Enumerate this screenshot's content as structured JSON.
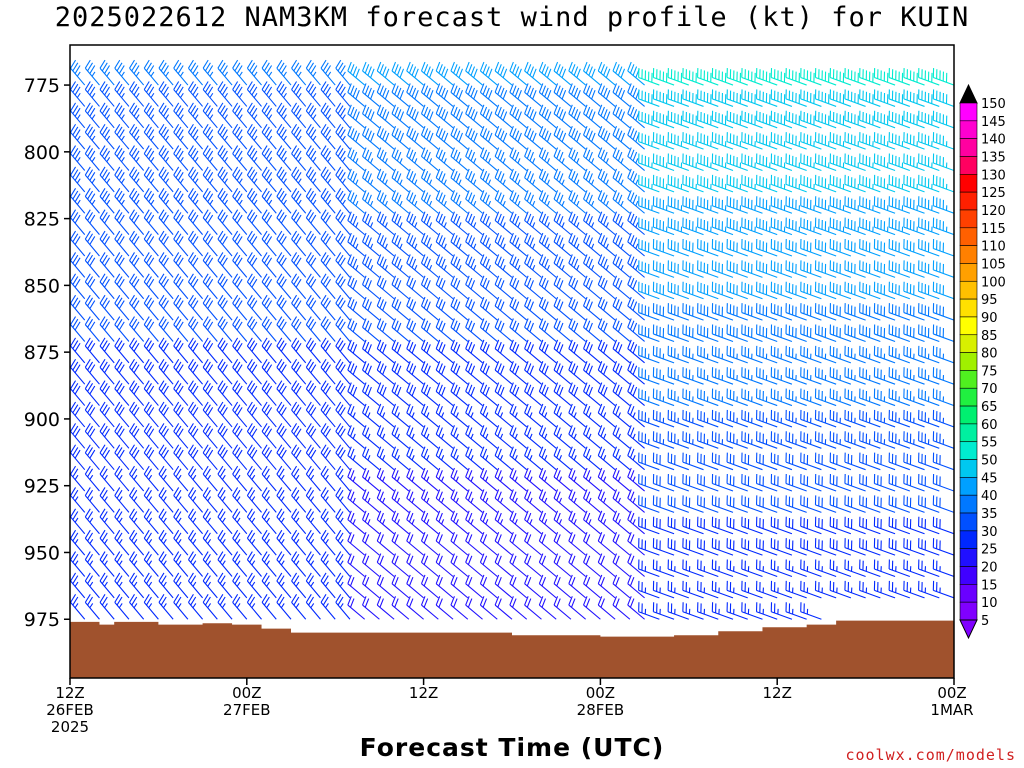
{
  "title": "2025022612 NAM3KM forecast wind profile (kt) for KUIN",
  "credit": "coolwx.com/models",
  "chart_data": {
    "type": "wind-barb-profile",
    "title": "2025022612 NAM3KM forecast wind profile (kt) for KUIN",
    "xlabel": "Forecast Time (UTC)",
    "ylabel": "",
    "y_axis": {
      "reversed": true,
      "ylim": [
        760,
        997
      ],
      "ticks": [
        775,
        800,
        825,
        850,
        875,
        900,
        925,
        950,
        975
      ]
    },
    "x_axis": {
      "xlim_hours": [
        0,
        60
      ],
      "ticks": [
        {
          "hour": 0,
          "lines": [
            "12Z",
            "26FEB",
            "2025"
          ]
        },
        {
          "hour": 12,
          "lines": [
            "00Z",
            "27FEB"
          ]
        },
        {
          "hour": 24,
          "lines": [
            "12Z"
          ]
        },
        {
          "hour": 36,
          "lines": [
            "00Z",
            "28FEB"
          ]
        },
        {
          "hour": 48,
          "lines": [
            "12Z"
          ]
        },
        {
          "hour": 60,
          "lines": [
            "00Z",
            "1MAR"
          ]
        }
      ]
    },
    "colorbar": {
      "levels": [
        5,
        10,
        15,
        20,
        25,
        30,
        35,
        40,
        45,
        50,
        55,
        60,
        65,
        70,
        75,
        80,
        85,
        90,
        95,
        100,
        105,
        110,
        115,
        120,
        125,
        130,
        135,
        140,
        145,
        150
      ],
      "colors": [
        "#8000ff",
        "#6a00ff",
        "#4000ff",
        "#2010ff",
        "#0028ff",
        "#0050ff",
        "#0078ff",
        "#00a0ff",
        "#00c8f0",
        "#00ecd0",
        "#00f0a0",
        "#00f070",
        "#20f040",
        "#50f020",
        "#a0f000",
        "#d8f000",
        "#ffff00",
        "#ffe000",
        "#ffc000",
        "#ffa000",
        "#ff8000",
        "#ff6000",
        "#ff4000",
        "#ff2000",
        "#ff0000",
        "#ff0060",
        "#ff00a0",
        "#ff00d0",
        "#ff00ff",
        "#000000"
      ]
    },
    "terrain": {
      "color": "#a0522d",
      "surface_pressure": [
        {
          "hour": 0,
          "hPa": 976
        },
        {
          "hour": 2,
          "hPa": 977
        },
        {
          "hour": 3,
          "hPa": 976
        },
        {
          "hour": 6,
          "hPa": 977
        },
        {
          "hour": 9,
          "hPa": 976.5
        },
        {
          "hour": 11,
          "hPa": 977
        },
        {
          "hour": 13,
          "hPa": 978.5
        },
        {
          "hour": 15,
          "hPa": 980
        },
        {
          "hour": 26,
          "hPa": 980
        },
        {
          "hour": 30,
          "hPa": 981
        },
        {
          "hour": 36,
          "hPa": 981.5
        },
        {
          "hour": 41,
          "hPa": 981
        },
        {
          "hour": 44,
          "hPa": 979.5
        },
        {
          "hour": 47,
          "hPa": 978
        },
        {
          "hour": 50,
          "hPa": 977
        },
        {
          "hour": 52,
          "hPa": 975.5
        },
        {
          "hour": 60,
          "hPa": 975
        }
      ]
    },
    "barbs": {
      "levels_hPa": [
        775,
        783,
        791,
        799,
        807,
        815,
        823,
        831,
        839,
        847,
        855,
        863,
        871,
        879,
        887,
        895,
        903,
        911,
        919,
        927,
        935,
        943,
        951,
        959,
        967,
        975
      ],
      "hours_start": 0,
      "hours_step": 1,
      "hours_count": 61,
      "regimes": [
        {
          "hours": [
            0,
            20
          ],
          "direction_deg": 320,
          "speed_kt": [
            35,
            25
          ]
        },
        {
          "hours": [
            20,
            40
          ],
          "direction_deg": 310,
          "speed_kt": [
            40,
            20
          ]
        },
        {
          "hours": [
            40,
            60
          ],
          "direction_deg": 290,
          "speed_kt": [
            50,
            25
          ]
        }
      ]
    }
  }
}
